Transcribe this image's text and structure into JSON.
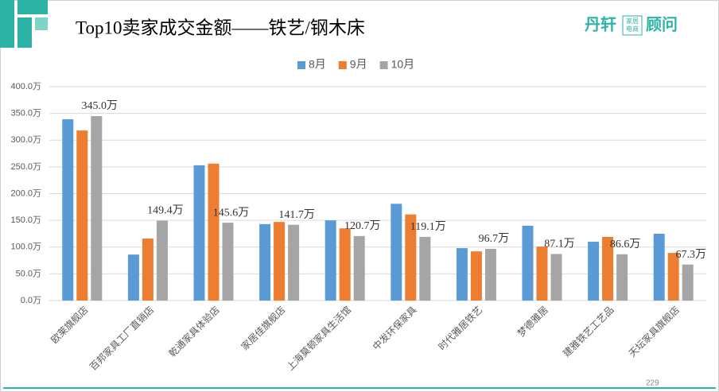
{
  "slide": {
    "logo_main": "丹轩",
    "logo_box_top": "家居",
    "logo_box_bottom": "电商",
    "logo_tail": "顾问",
    "page_number": "229"
  },
  "chart_data": {
    "type": "bar",
    "title": "Top10卖家成交金额——铁艺/钢木床",
    "categories": [
      "欧莱旗舰店",
      "百邦家具工厂直销店",
      "乾通家具体验店",
      "家居佳旗舰店",
      "上海莫顿家具生活馆",
      "中发环保家具",
      "时代雅居铁艺",
      "梦德雅居",
      "建雅铁艺工艺品",
      "天坛家具旗舰店"
    ],
    "series": [
      {
        "name": "8月",
        "color": "#5b9bd5",
        "values": [
          339,
          86,
          253,
          143,
          150,
          181,
          98,
          140,
          110,
          125
        ]
      },
      {
        "name": "9月",
        "color": "#ed7d31",
        "values": [
          318,
          116,
          256,
          147,
          135,
          161,
          92,
          101,
          119,
          89
        ]
      },
      {
        "name": "10月",
        "color": "#a5a5a5",
        "values": [
          345.0,
          149.4,
          145.6,
          141.7,
          120.7,
          119.1,
          96.7,
          87.1,
          86.6,
          67.3
        ],
        "value_labels": [
          "345.0万",
          "149.4万",
          "145.6万",
          "141.7万",
          "120.7万",
          "119.1万",
          "96.7万",
          "87.1万",
          "86.6万",
          "67.3万"
        ]
      }
    ],
    "ylim": [
      0,
      400
    ],
    "yticks": [
      {
        "value": 0,
        "label": "0.0万"
      },
      {
        "value": 50,
        "label": "50.0万"
      },
      {
        "value": 100,
        "label": "100.0万"
      },
      {
        "value": 150,
        "label": "150.0万"
      },
      {
        "value": 200,
        "label": "200.0万"
      },
      {
        "value": 250,
        "label": "250.0万"
      },
      {
        "value": 300,
        "label": "300.0万"
      },
      {
        "value": 350,
        "label": "350.0万"
      },
      {
        "value": 400,
        "label": "400.0万"
      }
    ],
    "grid": true,
    "legend": "top"
  }
}
